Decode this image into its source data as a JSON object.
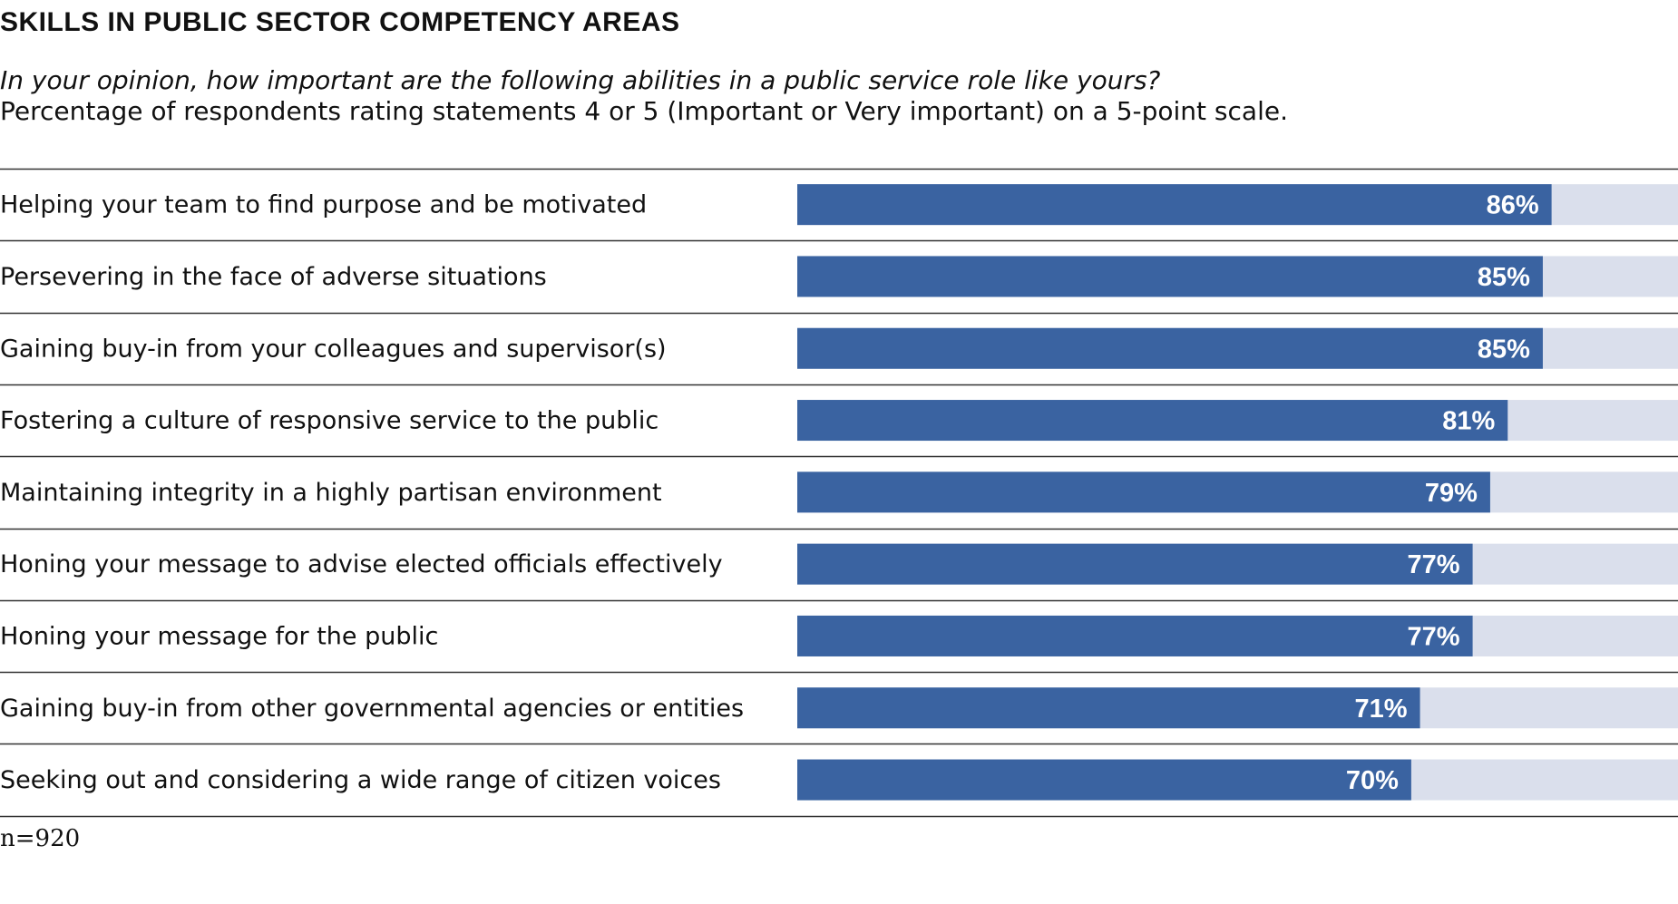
{
  "title": "SKILLS IN PUBLIC SECTOR COMPETENCY AREAS",
  "subtitle": "In your opinion, how important are the following abilities in a public service role like yours?",
  "note": "Percentage of respondents rating statements 4 or 5 (Important or Very important) on a 5-point scale.",
  "footnote": "n=920",
  "colors": {
    "bar": "#3a63a1",
    "track": "#dadfec",
    "rule": "#333333"
  },
  "chart_data": {
    "type": "bar",
    "orientation": "horizontal",
    "title": "SKILLS IN PUBLIC SECTOR COMPETENCY AREAS",
    "xlim": [
      0,
      100
    ],
    "unit": "%",
    "categories": [
      "Helping your team to find purpose and be motivated",
      "Persevering in the face of adverse situations",
      "Gaining buy-in from your colleagues and supervisor(s)",
      "Fostering a culture of responsive service to the public",
      "Maintaining integrity in a highly partisan environment",
      "Honing your message to advise elected officials effectively",
      "Honing your message for the public",
      "Gaining buy-in from other governmental agencies or entities",
      "Seeking out and considering a wide range of citizen voices"
    ],
    "values": [
      86,
      85,
      85,
      81,
      79,
      77,
      77,
      71,
      70
    ],
    "value_labels": [
      "86%",
      "85%",
      "85%",
      "81%",
      "79%",
      "77%",
      "77%",
      "71%",
      "70%"
    ]
  }
}
